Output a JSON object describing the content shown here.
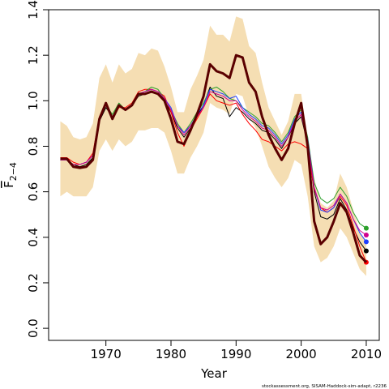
{
  "chart_data": {
    "type": "line",
    "xlabel": "Year",
    "ylabel": {
      "symbol": "F",
      "subscript": "2−4"
    },
    "footer": "stockassessment.org, SISAM-Haddock-sim-adapt, r2236",
    "x": [
      1963,
      1964,
      1965,
      1966,
      1967,
      1968,
      1969,
      1970,
      1971,
      1972,
      1973,
      1974,
      1975,
      1976,
      1977,
      1978,
      1979,
      1980,
      1981,
      1982,
      1983,
      1984,
      1985,
      1986,
      1987,
      1988,
      1989,
      1990,
      1991,
      1992,
      1993,
      1994,
      1995,
      1996,
      1997,
      1998,
      1999,
      2000,
      2001,
      2002,
      2003,
      2004,
      2005,
      2006,
      2007,
      2008,
      2009,
      2010
    ],
    "xlim": [
      1961.2,
      2012
    ],
    "xticks": [
      1970,
      1980,
      1990,
      2000,
      2010
    ],
    "ylim": [
      -0.053,
      1.4
    ],
    "yticks": [
      {
        "value": 0,
        "label": "0.0"
      },
      {
        "value": 0.2,
        "label": "0.2"
      },
      {
        "value": 0.4,
        "label": "0.4"
      },
      {
        "value": 0.6,
        "label": "0.6"
      },
      {
        "value": 0.8,
        "label": "0.8"
      },
      {
        "value": 1,
        "label": "1.0"
      },
      {
        "value": 1.2,
        "label": "1.2"
      },
      {
        "value": 1.4,
        "label": "1.4"
      }
    ],
    "band": {
      "color": "#f5deb3",
      "upper": [
        0.91,
        0.89,
        0.84,
        0.83,
        0.84,
        0.9,
        1.1,
        1.16,
        1.08,
        1.16,
        1.12,
        1.14,
        1.21,
        1.2,
        1.23,
        1.22,
        1.15,
        1.06,
        0.95,
        0.95,
        1.05,
        1.11,
        1.18,
        1.33,
        1.29,
        1.29,
        1.26,
        1.37,
        1.36,
        1.24,
        1.21,
        1.08,
        0.97,
        0.91,
        0.85,
        0.91,
        1.03,
        1.03,
        0.84,
        0.66,
        0.55,
        0.53,
        0.56,
        0.68,
        0.62,
        0.52,
        0.42,
        0.38
      ],
      "lower": [
        0.58,
        0.6,
        0.58,
        0.58,
        0.58,
        0.62,
        0.78,
        0.83,
        0.78,
        0.83,
        0.8,
        0.82,
        0.87,
        0.87,
        0.88,
        0.88,
        0.86,
        0.78,
        0.68,
        0.68,
        0.75,
        0.8,
        0.86,
        0.99,
        0.97,
        0.96,
        0.94,
        1.03,
        1.02,
        0.93,
        0.88,
        0.8,
        0.71,
        0.66,
        0.62,
        0.66,
        0.74,
        0.72,
        0.58,
        0.36,
        0.29,
        0.31,
        0.36,
        0.44,
        0.4,
        0.33,
        0.26,
        0.23
      ]
    },
    "series": [
      {
        "color": "#000000",
        "end_point": true,
        "values": [
          0.74,
          0.74,
          0.72,
          0.71,
          0.72,
          0.75,
          0.91,
          0.97,
          0.93,
          0.98,
          0.96,
          0.98,
          1.02,
          1.03,
          1.04,
          1.03,
          1.0,
          0.95,
          0.88,
          0.84,
          0.88,
          0.93,
          0.98,
          1.06,
          1.02,
          1.01,
          0.93,
          0.97,
          0.95,
          0.92,
          0.9,
          0.87,
          0.86,
          0.83,
          0.79,
          0.84,
          0.9,
          0.93,
          0.81,
          0.6,
          0.49,
          0.48,
          0.5,
          0.57,
          0.52,
          0.44,
          0.38,
          0.34
        ]
      },
      {
        "color": "#ff0000",
        "end_point": true,
        "values": [
          0.75,
          0.75,
          0.73,
          0.72,
          0.73,
          0.77,
          0.93,
          0.99,
          0.92,
          0.97,
          0.97,
          0.99,
          1.04,
          1.05,
          1.05,
          1.04,
          1.02,
          0.95,
          0.86,
          0.8,
          0.87,
          0.92,
          0.97,
          1.03,
          1.0,
          0.99,
          0.98,
          0.99,
          0.94,
          0.9,
          0.87,
          0.83,
          0.82,
          0.8,
          0.78,
          0.81,
          0.82,
          0.81,
          0.79,
          0.61,
          0.53,
          0.51,
          0.53,
          0.58,
          0.54,
          0.45,
          0.36,
          0.29
        ]
      },
      {
        "color": "#2ca02c",
        "end_point": true,
        "values": [
          0.74,
          0.74,
          0.72,
          0.72,
          0.73,
          0.76,
          0.92,
          0.98,
          0.94,
          0.99,
          0.96,
          0.98,
          1.03,
          1.04,
          1.06,
          1.05,
          1.01,
          0.96,
          0.9,
          0.86,
          0.9,
          0.95,
          0.99,
          1.05,
          1.06,
          1.04,
          1.01,
          1.0,
          0.97,
          0.95,
          0.93,
          0.9,
          0.89,
          0.86,
          0.82,
          0.86,
          0.93,
          0.96,
          0.84,
          0.64,
          0.57,
          0.55,
          0.57,
          0.62,
          0.58,
          0.51,
          0.46,
          0.44
        ]
      },
      {
        "color": "#1f3fff",
        "end_point": true,
        "values": [
          0.74,
          0.74,
          0.72,
          0.72,
          0.73,
          0.76,
          0.92,
          0.98,
          0.93,
          0.98,
          0.96,
          0.98,
          1.03,
          1.04,
          1.05,
          1.04,
          1.01,
          0.97,
          0.89,
          0.86,
          0.89,
          0.94,
          0.98,
          1.05,
          1.04,
          1.03,
          1.01,
          1.02,
          0.97,
          0.94,
          0.92,
          0.89,
          0.88,
          0.85,
          0.81,
          0.85,
          0.92,
          0.95,
          0.83,
          0.62,
          0.52,
          0.51,
          0.53,
          0.59,
          0.55,
          0.48,
          0.42,
          0.38
        ]
      },
      {
        "color": "#d0008f",
        "end_point": true,
        "values": [
          0.74,
          0.74,
          0.72,
          0.72,
          0.73,
          0.76,
          0.92,
          0.98,
          0.93,
          0.98,
          0.96,
          0.98,
          1.03,
          1.04,
          1.05,
          1.04,
          1.01,
          0.96,
          0.89,
          0.85,
          0.89,
          0.93,
          0.97,
          1.04,
          1.03,
          1.02,
          1.0,
          1.0,
          0.96,
          0.93,
          0.91,
          0.88,
          0.87,
          0.84,
          0.8,
          0.84,
          0.91,
          0.94,
          0.82,
          0.62,
          0.53,
          0.52,
          0.54,
          0.59,
          0.55,
          0.48,
          0.43,
          0.41
        ]
      },
      {
        "color": "#5a0000",
        "line_width": 3,
        "values": [
          0.745,
          0.745,
          0.71,
          0.705,
          0.71,
          0.74,
          0.92,
          0.99,
          0.92,
          0.98,
          0.96,
          0.98,
          1.03,
          1.03,
          1.04,
          1.03,
          1.0,
          0.92,
          0.82,
          0.81,
          0.87,
          0.94,
          1.02,
          1.16,
          1.13,
          1.12,
          1.1,
          1.2,
          1.19,
          1.08,
          1.04,
          0.93,
          0.85,
          0.79,
          0.74,
          0.79,
          0.9,
          0.99,
          0.8,
          0.47,
          0.37,
          0.4,
          0.47,
          0.55,
          0.51,
          0.42,
          0.32,
          0.29
        ]
      }
    ]
  }
}
